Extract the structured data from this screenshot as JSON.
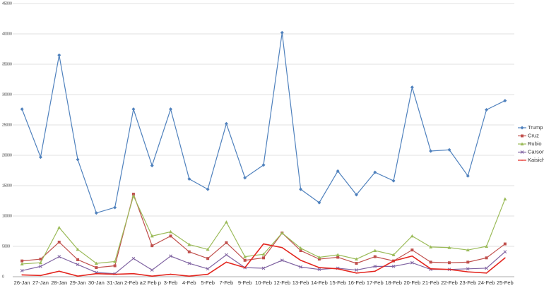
{
  "chart_data": {
    "type": "line",
    "categories": [
      "26-Jan",
      "27-Jan",
      "28-Jan",
      "29-Jan",
      "30-Jan",
      "31-Jan",
      "2-Feb a",
      "2 Feb p",
      "3-Feb",
      "4-Feb",
      "5-Feb",
      "7-Feb",
      "9-Feb",
      "10-Feb",
      "12-Feb",
      "13-Feb",
      "14-Feb",
      "15-Feb",
      "16-Feb",
      "17-Feb",
      "18-Feb",
      "20-Feb",
      "21-Feb",
      "22-Feb",
      "23-Feb",
      "24-Feb",
      "25-Feb"
    ],
    "series": [
      {
        "name": "Trump",
        "color": "#4f81bd",
        "values": [
          27600,
          19700,
          36500,
          19300,
          10500,
          11400,
          27600,
          18300,
          27600,
          16100,
          14400,
          25200,
          16300,
          18400,
          40200,
          14400,
          12200,
          17400,
          13500,
          17200,
          15800,
          31200,
          20700,
          20900,
          16600,
          27500,
          29000
        ]
      },
      {
        "name": "Cruz",
        "color": "#c0504d",
        "values": [
          2600,
          2900,
          5700,
          2800,
          1500,
          1800,
          13600,
          5100,
          6700,
          4100,
          3000,
          5600,
          2700,
          3100,
          7200,
          4300,
          2900,
          3200,
          2200,
          3300,
          2600,
          4400,
          2400,
          2300,
          2400,
          3100,
          5400
        ]
      },
      {
        "name": "Rubio",
        "color": "#9bbb59",
        "values": [
          2100,
          2300,
          8100,
          4500,
          2200,
          2500,
          13300,
          6700,
          7400,
          5300,
          4500,
          9000,
          3300,
          3700,
          7200,
          4700,
          3200,
          3600,
          2900,
          4300,
          3600,
          6700,
          4900,
          4800,
          4400,
          5000,
          12800
        ]
      },
      {
        "name": "Carson",
        "color": "#8064a2",
        "values": [
          1000,
          1700,
          3300,
          2000,
          700,
          500,
          3000,
          1100,
          3400,
          2200,
          1300,
          3600,
          1500,
          1400,
          2700,
          1600,
          1200,
          1400,
          1100,
          1700,
          1700,
          2300,
          1200,
          1200,
          1300,
          1400,
          4100
        ]
      },
      {
        "name": "Kaisich",
        "color": "#e3261f",
        "values": [
          300,
          200,
          900,
          100,
          500,
          400,
          500,
          100,
          400,
          100,
          400,
          2400,
          1500,
          5400,
          4800,
          2700,
          1500,
          1300,
          600,
          900,
          2600,
          3400,
          1300,
          1200,
          800,
          600,
          3100
        ]
      }
    ],
    "ylim": [
      0,
      45000
    ],
    "yticks": [
      0,
      5000,
      10000,
      15000,
      20000,
      25000,
      30000,
      35000,
      40000,
      45000
    ],
    "grid": true
  }
}
